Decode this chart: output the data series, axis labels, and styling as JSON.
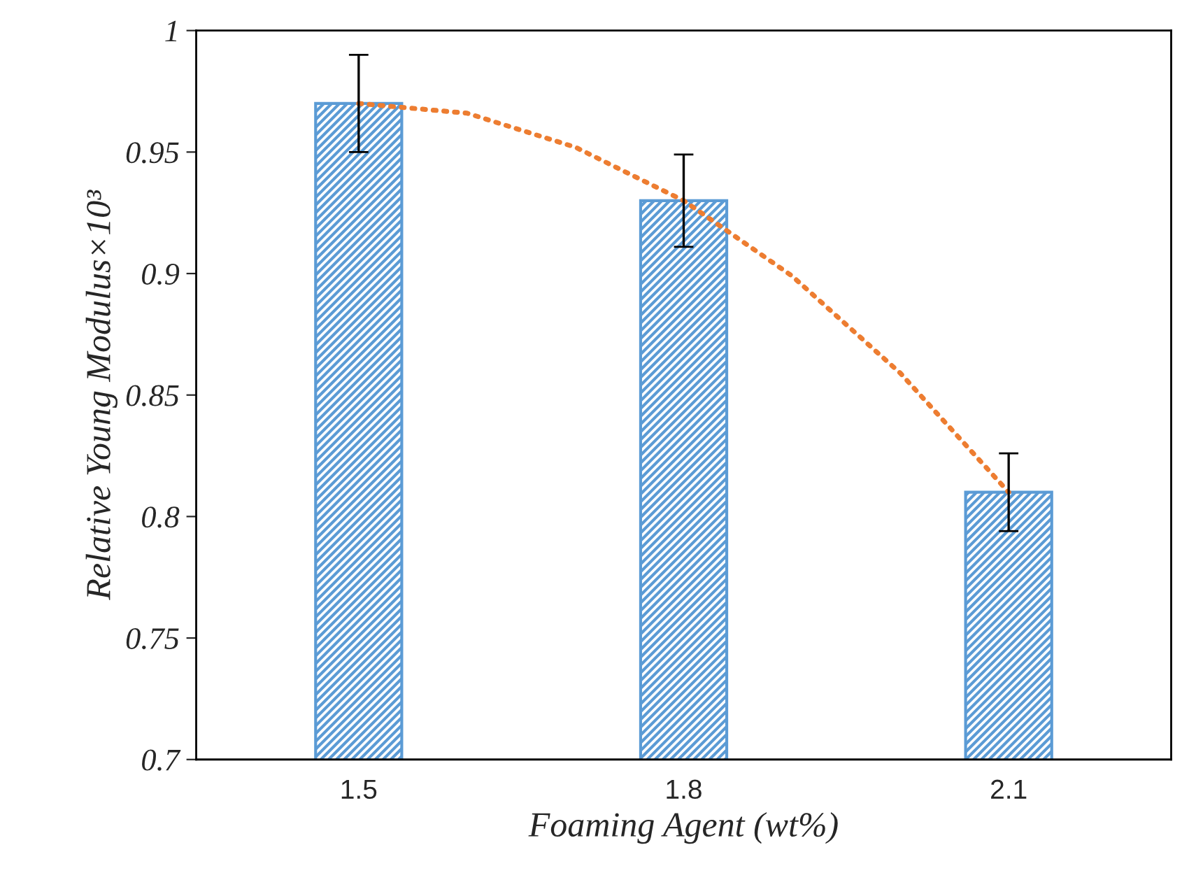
{
  "chart_data": {
    "type": "bar",
    "xlabel": "Foaming Agent (wt%)",
    "ylabel": "Relative Young Modulus×10³",
    "x": [
      1.5,
      1.8,
      2.1
    ],
    "xlim": [
      1.35,
      2.25
    ],
    "xticks": [
      1.5,
      1.8,
      2.1
    ],
    "ylim": [
      0.7,
      1
    ],
    "yticks": [
      0.7,
      0.75,
      0.8,
      0.85,
      0.9,
      0.95,
      1
    ],
    "grid": false,
    "legend": false,
    "series": [
      {
        "color": "#5b9bd5",
        "values": [
          0.97,
          0.93,
          0.81
        ],
        "errors": [
          0.02,
          0.019,
          0.016
        ]
      },
      {
        "type": "line",
        "color": "#ed7d31",
        "line_style": "dotted",
        "marker": "none",
        "x": [
          1.5,
          1.6,
          1.7,
          1.8,
          1.9,
          2.0,
          2.1
        ],
        "values": [
          0.97,
          0.966,
          0.952,
          0.93,
          0.899,
          0.859,
          0.81
        ]
      }
    ]
  }
}
